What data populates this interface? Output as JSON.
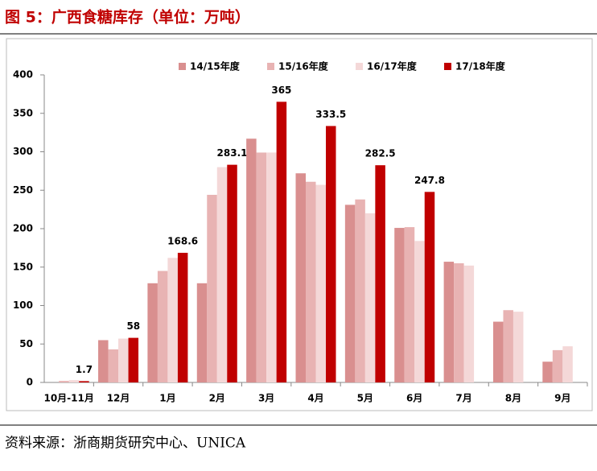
{
  "chart_data": {
    "type": "bar",
    "title": "图 5：广西食糖库存（单位：万吨）",
    "source": "资料来源：浙商期货研究中心、UNICA",
    "categories": [
      "10月-11月",
      "12月",
      "1月",
      "2月",
      "3月",
      "4月",
      "5月",
      "6月",
      "7月",
      "8月",
      "9月"
    ],
    "series": [
      {
        "name": "14/15年度",
        "color": "#d98f8f",
        "values": [
          0,
          55,
          129,
          129,
          317,
          272,
          231,
          201,
          157,
          79,
          27
        ]
      },
      {
        "name": "15/16年度",
        "color": "#e8b3b3",
        "values": [
          2,
          43,
          145,
          244,
          299,
          261,
          238,
          202,
          155,
          94,
          42
        ]
      },
      {
        "name": "16/17年度",
        "color": "#f4d8d8",
        "values": [
          3,
          57,
          162,
          280,
          299,
          257,
          220,
          184,
          152,
          92,
          47
        ]
      },
      {
        "name": "17/18年度",
        "color": "#c00000",
        "values": [
          1.7,
          58,
          168.6,
          283.1,
          365,
          333.5,
          282.5,
          247.8,
          null,
          null,
          null
        ]
      }
    ],
    "data_labels_series": [
      3
    ],
    "ylim": [
      0,
      400
    ],
    "yticks": [
      0,
      50,
      100,
      150,
      200,
      250,
      300,
      350,
      400
    ],
    "grid": false
  }
}
